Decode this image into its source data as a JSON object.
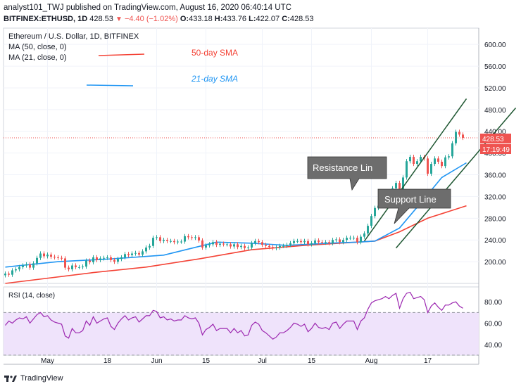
{
  "header": {
    "line1": "analyst101_TWJ published on TradingView.com, August 16, 2020 06:40:14 UTC",
    "symbol": "BITFINEX:ETHUSD, 1D",
    "last": "428.53",
    "change": "−4.40 (−1.02%)",
    "o_label": "O:",
    "o": "433.18",
    "h_label": "H:",
    "h": "433.76",
    "l_label": "L:",
    "l": "422.07",
    "c_label": "C:",
    "c": "428.53"
  },
  "legend": {
    "title": "Ethereum / U.S. Dollar, 1D, BITFINEX",
    "ma50": "MA (50, close, 0)",
    "ma21": "MA (21, close, 0)"
  },
  "annotations": {
    "sma50": "50-day SMA",
    "sma21": "21-day SMA",
    "resistance": "Resistance Lin",
    "support": "Support Line"
  },
  "price_badge": {
    "price": "428.53",
    "countdown": "17:19:49"
  },
  "rsi_label": "RSI (14, close)",
  "footer": {
    "brand": "TradingView"
  },
  "colors": {
    "up": "#26a69a",
    "down": "#ef5350",
    "sma50": "#f44336",
    "sma21": "#2196f3",
    "rsi": "#9c27b0",
    "rsi_band": "#efe3fb",
    "trend": "#1e5631",
    "callout": "#6d6d6d"
  },
  "chart_data": [
    {
      "type": "candlestick",
      "title": "Ethereum / U.S. Dollar, 1D, BITFINEX",
      "ylim": [
        160,
        630
      ],
      "yticks": [
        "600.00",
        "560.00",
        "520.00",
        "480.00",
        "440.00",
        "400.00",
        "360.00",
        "320.00",
        "280.00",
        "240.00",
        "200.00"
      ],
      "xticks": [
        "May",
        "18",
        "Jun",
        "15",
        "Jul",
        "15",
        "Aug",
        "17"
      ],
      "x_start": "2020-04-19",
      "x_end": "2020-09-01",
      "close": [
        178,
        176,
        184,
        186,
        190,
        193,
        195,
        189,
        197,
        207,
        215,
        210,
        213,
        209,
        208,
        207,
        206,
        189,
        186,
        193,
        190,
        190,
        191,
        202,
        199,
        208,
        203,
        206,
        207,
        208,
        203,
        200,
        205,
        208,
        214,
        212,
        215,
        216,
        213,
        219,
        226,
        229,
        244,
        245,
        238,
        240,
        238,
        238,
        236,
        237,
        237,
        247,
        245,
        244,
        245,
        239,
        226,
        230,
        232,
        236,
        231,
        233,
        232,
        232,
        228,
        232,
        227,
        229,
        225,
        226,
        234,
        238,
        236,
        231,
        229,
        227,
        225,
        226,
        229,
        229,
        231,
        234,
        238,
        238,
        236,
        238,
        232,
        234,
        239,
        236,
        235,
        236,
        234,
        240,
        241,
        236,
        240,
        244,
        244,
        244,
        236,
        246,
        252,
        266,
        284,
        299,
        303,
        308,
        320,
        319,
        335,
        345,
        317,
        355,
        385,
        393,
        380,
        385,
        393,
        390,
        362,
        380,
        390,
        384,
        376,
        392,
        394,
        418,
        439,
        434,
        428
      ],
      "open": [
        175,
        178,
        176,
        184,
        186,
        190,
        193,
        195,
        189,
        197,
        207,
        215,
        210,
        213,
        209,
        208,
        207,
        206,
        189,
        186,
        193,
        190,
        190,
        191,
        202,
        199,
        208,
        203,
        206,
        207,
        208,
        203,
        200,
        205,
        208,
        214,
        212,
        215,
        216,
        213,
        219,
        226,
        229,
        244,
        245,
        238,
        240,
        238,
        238,
        236,
        237,
        237,
        247,
        245,
        244,
        245,
        239,
        226,
        230,
        232,
        236,
        231,
        233,
        232,
        232,
        228,
        232,
        227,
        229,
        225,
        226,
        234,
        238,
        236,
        231,
        229,
        227,
        225,
        226,
        229,
        229,
        231,
        234,
        238,
        238,
        236,
        238,
        232,
        234,
        239,
        236,
        235,
        236,
        234,
        240,
        241,
        236,
        240,
        244,
        244,
        244,
        236,
        246,
        252,
        266,
        284,
        299,
        303,
        308,
        320,
        319,
        335,
        345,
        317,
        355,
        385,
        393,
        380,
        385,
        393,
        390,
        362,
        380,
        390,
        384,
        376,
        392,
        394,
        418,
        439,
        434
      ],
      "sma50": [
        [
          0,
          160
        ],
        [
          25,
          180
        ],
        [
          40,
          190
        ],
        [
          55,
          205
        ],
        [
          70,
          222
        ],
        [
          85,
          230
        ],
        [
          100,
          236
        ],
        [
          105,
          238
        ],
        [
          112,
          255
        ],
        [
          120,
          280
        ],
        [
          131,
          303
        ]
      ],
      "sma21": [
        [
          0,
          190
        ],
        [
          15,
          200
        ],
        [
          30,
          205
        ],
        [
          45,
          212
        ],
        [
          60,
          236
        ],
        [
          70,
          234
        ],
        [
          80,
          230
        ],
        [
          92,
          234
        ],
        [
          100,
          236
        ],
        [
          105,
          238
        ],
        [
          112,
          262
        ],
        [
          118,
          308
        ],
        [
          124,
          355
        ],
        [
          131,
          382
        ]
      ],
      "resistance_line": [
        [
          102,
          238
        ],
        [
          131,
          500
        ]
      ],
      "support_line": [
        [
          111,
          225
        ],
        [
          145,
          483
        ]
      ]
    },
    {
      "type": "line",
      "title": "RSI (14, close)",
      "ylim": [
        30,
        94
      ],
      "yticks": [
        "80.00",
        "60.00",
        "40.00"
      ],
      "band": [
        30,
        70
      ],
      "values": [
        58,
        62,
        60,
        63,
        65,
        64,
        66,
        60,
        64,
        68,
        70,
        66,
        67,
        63,
        61,
        60,
        59,
        48,
        46,
        55,
        51,
        51,
        53,
        62,
        58,
        66,
        60,
        62,
        64,
        65,
        57,
        54,
        60,
        64,
        67,
        63,
        65,
        66,
        61,
        64,
        67,
        67,
        72,
        71,
        65,
        66,
        63,
        64,
        62,
        63,
        63,
        67,
        65,
        64,
        65,
        60,
        49,
        54,
        56,
        59,
        53,
        55,
        55,
        55,
        51,
        55,
        51,
        53,
        48,
        49,
        58,
        61,
        59,
        53,
        51,
        48,
        45,
        47,
        51,
        51,
        53,
        56,
        60,
        59,
        57,
        59,
        52,
        55,
        60,
        56,
        55,
        56,
        54,
        60,
        61,
        55,
        59,
        62,
        62,
        62,
        54,
        62,
        65,
        73,
        79,
        81,
        82,
        83,
        85,
        83,
        86,
        88,
        74,
        83,
        88,
        89,
        83,
        84,
        85,
        82,
        70,
        76,
        79,
        75,
        72,
        77,
        77,
        79,
        80,
        76,
        74
      ]
    }
  ]
}
